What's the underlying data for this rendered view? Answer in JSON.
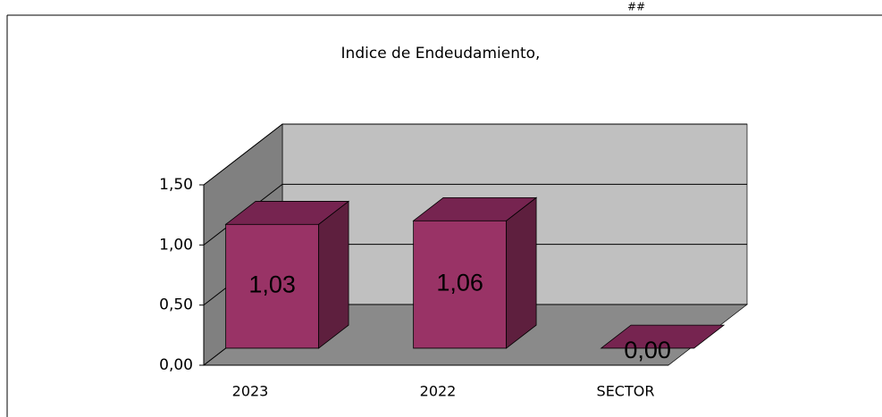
{
  "marker": "##",
  "chart_data": {
    "type": "bar3d",
    "title": "Indice de Endeudamiento,",
    "categories": [
      "2023",
      "2022",
      "SECTOR"
    ],
    "values": [
      1.03,
      1.06,
      0
    ],
    "value_labels": [
      "1,03",
      "1,06",
      "0,00"
    ],
    "color": "#993366",
    "ylim": [
      0,
      1.5
    ],
    "yticks": [
      {
        "value": 0,
        "label": "0,00"
      },
      {
        "value": 0.5,
        "label": "0,50"
      },
      {
        "value": 1,
        "label": "1,00"
      },
      {
        "value": 1.5,
        "label": "1,50"
      }
    ],
    "grid": true
  }
}
